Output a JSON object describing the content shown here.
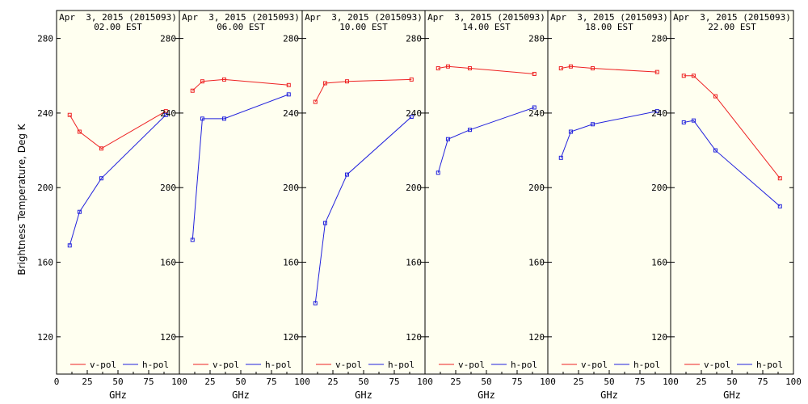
{
  "ylabel": "Brightness Temperature, Deg K",
  "xlabel": "GHz",
  "legend": {
    "v_label": "v-pol",
    "h_label": "h-pol",
    "placement": "bottom"
  },
  "colors": {
    "v": "#ee2222",
    "h": "#2222dd",
    "background": "#fffff0"
  },
  "chart_data": [
    {
      "type": "line",
      "title": "Apr  3, 2015 (2015093)",
      "subtitle": "02.00 EST",
      "x": [
        10.7,
        18.7,
        36.5,
        89.0
      ],
      "xlim": [
        0,
        100
      ],
      "ylim": [
        100,
        295
      ],
      "xticks": [
        0,
        25,
        50,
        75,
        100
      ],
      "yticks": [
        120,
        160,
        200,
        240,
        280
      ],
      "series": [
        {
          "name": "v-pol",
          "values": [
            239,
            230,
            221,
            241
          ]
        },
        {
          "name": "h-pol",
          "values": [
            169,
            187,
            205,
            239
          ]
        }
      ]
    },
    {
      "type": "line",
      "title": "Apr  3, 2015 (2015093)",
      "subtitle": "06.00 EST",
      "x": [
        10.7,
        18.7,
        36.5,
        89.0
      ],
      "xlim": [
        0,
        100
      ],
      "ylim": [
        100,
        295
      ],
      "xticks": [
        0,
        25,
        50,
        75,
        100
      ],
      "yticks": [
        120,
        160,
        200,
        240,
        280
      ],
      "series": [
        {
          "name": "v-pol",
          "values": [
            252,
            257,
            258,
            255
          ]
        },
        {
          "name": "h-pol",
          "values": [
            172,
            237,
            237,
            250
          ]
        }
      ]
    },
    {
      "type": "line",
      "title": "Apr  3, 2015 (2015093)",
      "subtitle": "10.00 EST",
      "x": [
        10.7,
        18.7,
        36.5,
        89.0
      ],
      "xlim": [
        0,
        100
      ],
      "ylim": [
        100,
        295
      ],
      "xticks": [
        0,
        25,
        50,
        75,
        100
      ],
      "yticks": [
        120,
        160,
        200,
        240,
        280
      ],
      "series": [
        {
          "name": "v-pol",
          "values": [
            246,
            256,
            257,
            258
          ]
        },
        {
          "name": "h-pol",
          "values": [
            138,
            181,
            207,
            238
          ]
        }
      ]
    },
    {
      "type": "line",
      "title": "Apr  3, 2015 (2015093)",
      "subtitle": "14.00 EST",
      "x": [
        10.7,
        18.7,
        36.5,
        89.0
      ],
      "xlim": [
        0,
        100
      ],
      "ylim": [
        100,
        295
      ],
      "xticks": [
        0,
        25,
        50,
        75,
        100
      ],
      "yticks": [
        120,
        160,
        200,
        240,
        280
      ],
      "series": [
        {
          "name": "v-pol",
          "values": [
            264,
            265,
            264,
            261
          ]
        },
        {
          "name": "h-pol",
          "values": [
            208,
            226,
            231,
            243
          ]
        }
      ]
    },
    {
      "type": "line",
      "title": "Apr  3, 2015 (2015093)",
      "subtitle": "18.00 EST",
      "x": [
        10.7,
        18.7,
        36.5,
        89.0
      ],
      "xlim": [
        0,
        100
      ],
      "ylim": [
        100,
        295
      ],
      "xticks": [
        0,
        25,
        50,
        75,
        100
      ],
      "yticks": [
        120,
        160,
        200,
        240,
        280
      ],
      "series": [
        {
          "name": "v-pol",
          "values": [
            264,
            265,
            264,
            262
          ]
        },
        {
          "name": "h-pol",
          "values": [
            216,
            230,
            234,
            241
          ]
        }
      ]
    },
    {
      "type": "line",
      "title": "Apr  3, 2015 (2015093)",
      "subtitle": "22.00 EST",
      "x": [
        10.7,
        18.7,
        36.5,
        89.0
      ],
      "xlim": [
        0,
        100
      ],
      "ylim": [
        100,
        295
      ],
      "xticks": [
        0,
        25,
        50,
        75,
        100
      ],
      "yticks": [
        120,
        160,
        200,
        240,
        280
      ],
      "series": [
        {
          "name": "v-pol",
          "values": [
            260,
            260,
            249,
            205
          ]
        },
        {
          "name": "h-pol",
          "values": [
            235,
            236,
            220,
            190
          ]
        }
      ]
    }
  ]
}
